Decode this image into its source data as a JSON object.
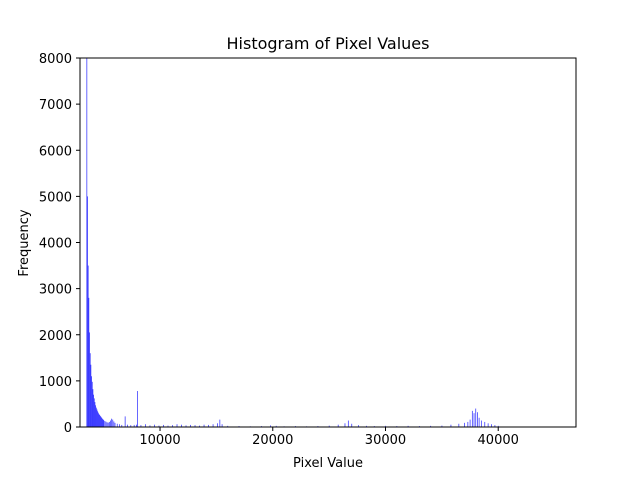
{
  "chart_data": {
    "type": "bar",
    "title": "Histogram of Pixel Values",
    "xlabel": "Pixel Value",
    "ylabel": "Frequency",
    "xlim": [
      2900,
      46900
    ],
    "ylim": [
      0,
      8000
    ],
    "xticks": [
      10000,
      20000,
      30000,
      40000
    ],
    "xtick_labels": [
      "10000",
      "20000",
      "30000",
      "40000"
    ],
    "yticks": [
      0,
      1000,
      2000,
      3000,
      4000,
      5000,
      6000,
      7000,
      8000
    ],
    "ytick_labels": [
      "0",
      "1000",
      "2000",
      "3000",
      "4000",
      "5000",
      "6000",
      "7000",
      "8000"
    ],
    "grid": false,
    "legend": "none",
    "color": "#0000ff",
    "bins": [
      {
        "x": 3500,
        "y": 8000
      },
      {
        "x": 3560,
        "y": 5000
      },
      {
        "x": 3620,
        "y": 3500
      },
      {
        "x": 3680,
        "y": 2800
      },
      {
        "x": 3740,
        "y": 2050
      },
      {
        "x": 3800,
        "y": 1600
      },
      {
        "x": 3860,
        "y": 1350
      },
      {
        "x": 3920,
        "y": 1100
      },
      {
        "x": 3980,
        "y": 980
      },
      {
        "x": 4040,
        "y": 820
      },
      {
        "x": 4100,
        "y": 700
      },
      {
        "x": 4160,
        "y": 620
      },
      {
        "x": 4220,
        "y": 540
      },
      {
        "x": 4280,
        "y": 470
      },
      {
        "x": 4340,
        "y": 420
      },
      {
        "x": 4400,
        "y": 380
      },
      {
        "x": 4460,
        "y": 340
      },
      {
        "x": 4520,
        "y": 310
      },
      {
        "x": 4580,
        "y": 280
      },
      {
        "x": 4640,
        "y": 260
      },
      {
        "x": 4700,
        "y": 240
      },
      {
        "x": 4760,
        "y": 220
      },
      {
        "x": 4820,
        "y": 200
      },
      {
        "x": 4880,
        "y": 180
      },
      {
        "x": 4940,
        "y": 165
      },
      {
        "x": 5000,
        "y": 150
      },
      {
        "x": 5100,
        "y": 130
      },
      {
        "x": 5200,
        "y": 115
      },
      {
        "x": 5300,
        "y": 100
      },
      {
        "x": 5400,
        "y": 95
      },
      {
        "x": 5500,
        "y": 110
      },
      {
        "x": 5600,
        "y": 140
      },
      {
        "x": 5700,
        "y": 180
      },
      {
        "x": 5800,
        "y": 160
      },
      {
        "x": 5900,
        "y": 120
      },
      {
        "x": 6000,
        "y": 90
      },
      {
        "x": 6200,
        "y": 70
      },
      {
        "x": 6400,
        "y": 60
      },
      {
        "x": 6600,
        "y": 45
      },
      {
        "x": 6900,
        "y": 230
      },
      {
        "x": 7100,
        "y": 50
      },
      {
        "x": 7400,
        "y": 40
      },
      {
        "x": 7700,
        "y": 45
      },
      {
        "x": 7900,
        "y": 50
      },
      {
        "x": 8000,
        "y": 780
      },
      {
        "x": 8300,
        "y": 40
      },
      {
        "x": 8700,
        "y": 60
      },
      {
        "x": 9100,
        "y": 35
      },
      {
        "x": 9500,
        "y": 50
      },
      {
        "x": 9900,
        "y": 30
      },
      {
        "x": 10300,
        "y": 45
      },
      {
        "x": 10700,
        "y": 30
      },
      {
        "x": 11100,
        "y": 40
      },
      {
        "x": 11500,
        "y": 60
      },
      {
        "x": 11900,
        "y": 50
      },
      {
        "x": 12300,
        "y": 35
      },
      {
        "x": 12700,
        "y": 45
      },
      {
        "x": 13100,
        "y": 40
      },
      {
        "x": 13500,
        "y": 30
      },
      {
        "x": 13900,
        "y": 50
      },
      {
        "x": 14300,
        "y": 45
      },
      {
        "x": 14700,
        "y": 60
      },
      {
        "x": 15100,
        "y": 80
      },
      {
        "x": 15300,
        "y": 160
      },
      {
        "x": 15500,
        "y": 60
      },
      {
        "x": 16000,
        "y": 25
      },
      {
        "x": 17000,
        "y": 20
      },
      {
        "x": 18000,
        "y": 15
      },
      {
        "x": 19000,
        "y": 20
      },
      {
        "x": 19800,
        "y": 35
      },
      {
        "x": 20300,
        "y": 25
      },
      {
        "x": 21000,
        "y": 15
      },
      {
        "x": 22000,
        "y": 20
      },
      {
        "x": 23000,
        "y": 15
      },
      {
        "x": 24000,
        "y": 20
      },
      {
        "x": 25000,
        "y": 30
      },
      {
        "x": 25800,
        "y": 50
      },
      {
        "x": 26400,
        "y": 80
      },
      {
        "x": 26700,
        "y": 140
      },
      {
        "x": 27000,
        "y": 70
      },
      {
        "x": 27600,
        "y": 40
      },
      {
        "x": 28300,
        "y": 25
      },
      {
        "x": 29000,
        "y": 20
      },
      {
        "x": 30000,
        "y": 25
      },
      {
        "x": 31000,
        "y": 20
      },
      {
        "x": 32000,
        "y": 25
      },
      {
        "x": 33000,
        "y": 20
      },
      {
        "x": 34000,
        "y": 25
      },
      {
        "x": 35000,
        "y": 30
      },
      {
        "x": 35800,
        "y": 50
      },
      {
        "x": 36500,
        "y": 70
      },
      {
        "x": 37000,
        "y": 90
      },
      {
        "x": 37300,
        "y": 110
      },
      {
        "x": 37500,
        "y": 160
      },
      {
        "x": 37700,
        "y": 350
      },
      {
        "x": 37850,
        "y": 300
      },
      {
        "x": 38000,
        "y": 400
      },
      {
        "x": 38150,
        "y": 320
      },
      {
        "x": 38300,
        "y": 200
      },
      {
        "x": 38500,
        "y": 140
      },
      {
        "x": 38800,
        "y": 110
      },
      {
        "x": 39100,
        "y": 80
      },
      {
        "x": 39400,
        "y": 60
      },
      {
        "x": 39700,
        "y": 40
      },
      {
        "x": 40000,
        "y": 25
      },
      {
        "x": 40500,
        "y": 10
      },
      {
        "x": 41500,
        "y": 5
      },
      {
        "x": 43000,
        "y": 3
      },
      {
        "x": 45000,
        "y": 2
      }
    ]
  }
}
